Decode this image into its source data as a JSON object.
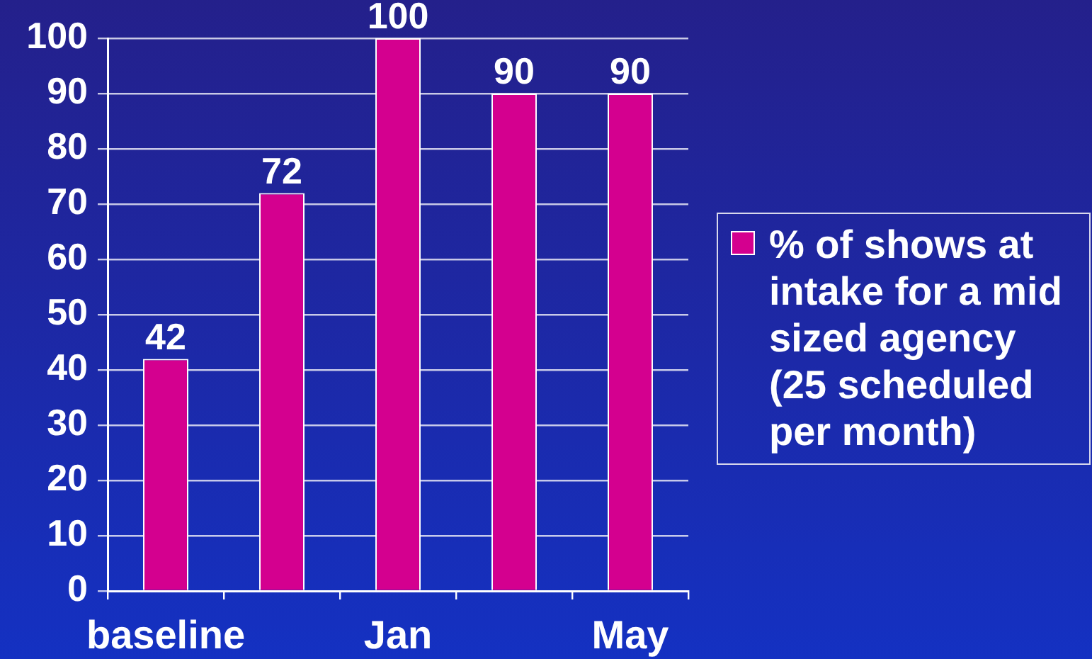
{
  "chart_data": {
    "type": "bar",
    "categories": [
      "baseline",
      null,
      "Jan",
      null,
      "May"
    ],
    "series": [
      {
        "name": "% of shows at intake for a mid sized agency (25 scheduled per month)",
        "color": "#d4008f",
        "values": [
          42,
          72,
          100,
          90,
          90
        ]
      }
    ],
    "ylim": [
      0,
      100
    ],
    "yticks": [
      0,
      10,
      20,
      30,
      40,
      50,
      60,
      70,
      80,
      90,
      100
    ],
    "grid": "y",
    "legend": "right",
    "data_labels": true
  }
}
